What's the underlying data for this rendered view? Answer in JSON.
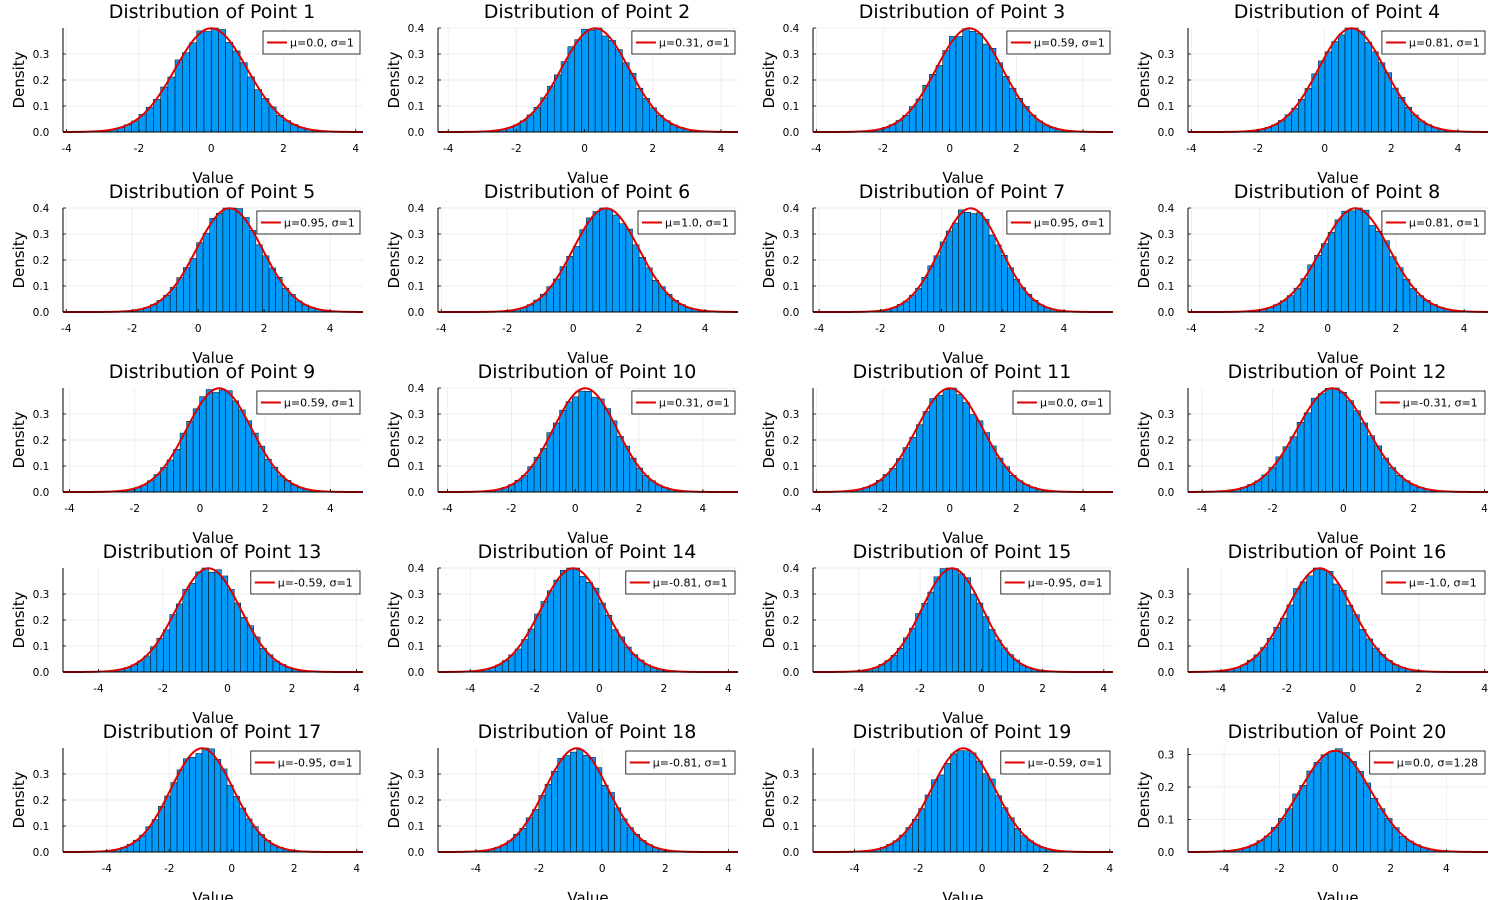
{
  "colors": {
    "bar": "#009AFA",
    "fit": "#E00000"
  },
  "chart_data": [
    {
      "type": "histogram",
      "title": "Distribution of Point 1",
      "xlabel": "Value",
      "ylabel": "Density",
      "xlim": [
        -4.1,
        4.2
      ],
      "xticks": [
        -4,
        -2,
        0,
        2,
        4
      ],
      "yticks": [
        "0.0",
        "0.1",
        "0.2",
        "0.3"
      ],
      "ylim": [
        0,
        0.4
      ],
      "mu": 0.0,
      "sigma": 1,
      "legend": "μ=0.0, σ=1"
    },
    {
      "type": "histogram",
      "title": "Distribution of Point 2",
      "xlabel": "Value",
      "ylabel": "Density",
      "xlim": [
        -4.3,
        4.5
      ],
      "xticks": [
        -4,
        -2,
        0,
        2,
        4
      ],
      "yticks": [
        "0.0",
        "0.1",
        "0.2",
        "0.3",
        "0.4"
      ],
      "ylim": [
        0,
        0.4
      ],
      "mu": 0.31,
      "sigma": 1,
      "legend": "μ=0.31, σ=1"
    },
    {
      "type": "histogram",
      "title": "Distribution of Point 3",
      "xlabel": "Value",
      "ylabel": "Density",
      "xlim": [
        -4.1,
        4.9
      ],
      "xticks": [
        -4,
        -2,
        0,
        2,
        4
      ],
      "yticks": [
        "0.0",
        "0.1",
        "0.2",
        "0.3",
        "0.4"
      ],
      "ylim": [
        0,
        0.4
      ],
      "mu": 0.59,
      "sigma": 1,
      "legend": "μ=0.59, σ=1"
    },
    {
      "type": "histogram",
      "title": "Distribution of Point 4",
      "xlabel": "Value",
      "ylabel": "Density",
      "xlim": [
        -4.1,
        4.9
      ],
      "xticks": [
        -4,
        -2,
        0,
        2,
        4
      ],
      "yticks": [
        "0.0",
        "0.1",
        "0.2",
        "0.3"
      ],
      "ylim": [
        0,
        0.4
      ],
      "mu": 0.81,
      "sigma": 1,
      "legend": "μ=0.81, σ=1"
    },
    {
      "type": "histogram",
      "title": "Distribution of Point 5",
      "xlabel": "Value",
      "ylabel": "Density",
      "xlim": [
        -4.1,
        5.0
      ],
      "xticks": [
        -4,
        -2,
        0,
        2,
        4
      ],
      "yticks": [
        "0.0",
        "0.1",
        "0.2",
        "0.3",
        "0.4"
      ],
      "ylim": [
        0,
        0.4
      ],
      "mu": 0.95,
      "sigma": 1,
      "legend": "μ=0.95, σ=1"
    },
    {
      "type": "histogram",
      "title": "Distribution of Point 6",
      "xlabel": "Value",
      "ylabel": "Density",
      "xlim": [
        -4.1,
        5.0
      ],
      "xticks": [
        -4,
        -2,
        0,
        2,
        4
      ],
      "yticks": [
        "0.0",
        "0.1",
        "0.2",
        "0.3",
        "0.4"
      ],
      "ylim": [
        0,
        0.4
      ],
      "mu": 1.0,
      "sigma": 1,
      "legend": "μ=1.0, σ=1"
    },
    {
      "type": "histogram",
      "title": "Distribution of Point 7",
      "xlabel": "Value",
      "ylabel": "Density",
      "xlim": [
        -4.2,
        5.6
      ],
      "xticks": [
        -4,
        -2,
        0,
        2,
        4
      ],
      "yticks": [
        "0.0",
        "0.1",
        "0.2",
        "0.3",
        "0.4"
      ],
      "ylim": [
        0,
        0.4
      ],
      "mu": 0.95,
      "sigma": 1,
      "legend": "μ=0.95, σ=1"
    },
    {
      "type": "histogram",
      "title": "Distribution of Point 8",
      "xlabel": "Value",
      "ylabel": "Density",
      "xlim": [
        -4.1,
        4.7
      ],
      "xticks": [
        -4,
        -2,
        0,
        2,
        4
      ],
      "yticks": [
        "0.0",
        "0.1",
        "0.2",
        "0.3",
        "0.4"
      ],
      "ylim": [
        0,
        0.4
      ],
      "mu": 0.81,
      "sigma": 1,
      "legend": "μ=0.81, σ=1"
    },
    {
      "type": "histogram",
      "title": "Distribution of Point 9",
      "xlabel": "Value",
      "ylabel": "Density",
      "xlim": [
        -4.2,
        5.0
      ],
      "xticks": [
        -4,
        -2,
        0,
        2,
        4
      ],
      "yticks": [
        "0.0",
        "0.1",
        "0.2",
        "0.3"
      ],
      "ylim": [
        0,
        0.4
      ],
      "mu": 0.59,
      "sigma": 1,
      "legend": "μ=0.59, σ=1"
    },
    {
      "type": "histogram",
      "title": "Distribution of Point 10",
      "xlabel": "Value",
      "ylabel": "Density",
      "xlim": [
        -4.3,
        5.1
      ],
      "xticks": [
        -4,
        -2,
        0,
        2,
        4
      ],
      "yticks": [
        "0.0",
        "0.1",
        "0.2",
        "0.3",
        "0.4"
      ],
      "ylim": [
        0,
        0.4
      ],
      "mu": 0.31,
      "sigma": 1,
      "legend": "μ=0.31, σ=1"
    },
    {
      "type": "histogram",
      "title": "Distribution of Point 11",
      "xlabel": "Value",
      "ylabel": "Density",
      "xlim": [
        -4.1,
        4.9
      ],
      "xticks": [
        -4,
        -2,
        0,
        2,
        4
      ],
      "yticks": [
        "0.0",
        "0.1",
        "0.2",
        "0.3"
      ],
      "ylim": [
        0,
        0.4
      ],
      "mu": 0.0,
      "sigma": 1,
      "legend": "μ=0.0, σ=1"
    },
    {
      "type": "histogram",
      "title": "Distribution of Point 12",
      "xlabel": "Value",
      "ylabel": "Density",
      "xlim": [
        -4.4,
        4.1
      ],
      "xticks": [
        -4,
        -2,
        0,
        2,
        4
      ],
      "yticks": [
        "0.0",
        "0.1",
        "0.2",
        "0.3"
      ],
      "ylim": [
        0,
        0.4
      ],
      "mu": -0.31,
      "sigma": 1,
      "legend": "μ=-0.31, σ=1"
    },
    {
      "type": "histogram",
      "title": "Distribution of Point 13",
      "xlabel": "Value",
      "ylabel": "Density",
      "xlim": [
        -5.1,
        4.2
      ],
      "xticks": [
        -4,
        -2,
        0,
        2,
        4
      ],
      "yticks": [
        "0.0",
        "0.1",
        "0.2",
        "0.3"
      ],
      "ylim": [
        0,
        0.4
      ],
      "mu": -0.59,
      "sigma": 1,
      "legend": "μ=-0.59, σ=1"
    },
    {
      "type": "histogram",
      "title": "Distribution of Point 14",
      "xlabel": "Value",
      "ylabel": "Density",
      "xlim": [
        -5.0,
        4.3
      ],
      "xticks": [
        -4,
        -2,
        0,
        2,
        4
      ],
      "yticks": [
        "0.0",
        "0.1",
        "0.2",
        "0.3",
        "0.4"
      ],
      "ylim": [
        0,
        0.4
      ],
      "mu": -0.81,
      "sigma": 1,
      "legend": "μ=-0.81, σ=1"
    },
    {
      "type": "histogram",
      "title": "Distribution of Point 15",
      "xlabel": "Value",
      "ylabel": "Density",
      "xlim": [
        -5.5,
        4.3
      ],
      "xticks": [
        -4,
        -2,
        0,
        2,
        4
      ],
      "yticks": [
        "0.0",
        "0.1",
        "0.2",
        "0.3",
        "0.4"
      ],
      "ylim": [
        0,
        0.4
      ],
      "mu": -0.95,
      "sigma": 1,
      "legend": "μ=-0.95, σ=1"
    },
    {
      "type": "histogram",
      "title": "Distribution of Point 16",
      "xlabel": "Value",
      "ylabel": "Density",
      "xlim": [
        -5.0,
        4.1
      ],
      "xticks": [
        -4,
        -2,
        0,
        2,
        4
      ],
      "yticks": [
        "0.0",
        "0.1",
        "0.2",
        "0.3"
      ],
      "ylim": [
        0,
        0.4
      ],
      "mu": -1.0,
      "sigma": 1,
      "legend": "μ=-1.0, σ=1"
    },
    {
      "type": "histogram",
      "title": "Distribution of Point 17",
      "xlabel": "Value",
      "ylabel": "Density",
      "xlim": [
        -5.4,
        4.2
      ],
      "xticks": [
        -4,
        -2,
        0,
        2,
        4
      ],
      "yticks": [
        "0.0",
        "0.1",
        "0.2",
        "0.3"
      ],
      "ylim": [
        0,
        0.4
      ],
      "mu": -0.95,
      "sigma": 1,
      "legend": "μ=-0.95, σ=1"
    },
    {
      "type": "histogram",
      "title": "Distribution of Point 18",
      "xlabel": "Value",
      "ylabel": "Density",
      "xlim": [
        -5.2,
        4.3
      ],
      "xticks": [
        -4,
        -2,
        0,
        2,
        4
      ],
      "yticks": [
        "0.0",
        "0.1",
        "0.2",
        "0.3"
      ],
      "ylim": [
        0,
        0.4
      ],
      "mu": -0.81,
      "sigma": 1,
      "legend": "μ=-0.81, σ=1"
    },
    {
      "type": "histogram",
      "title": "Distribution of Point 19",
      "xlabel": "Value",
      "ylabel": "Density",
      "xlim": [
        -5.3,
        4.1
      ],
      "xticks": [
        -4,
        -2,
        0,
        2,
        4
      ],
      "yticks": [
        "0.0",
        "0.1",
        "0.2",
        "0.3"
      ],
      "ylim": [
        0,
        0.4
      ],
      "mu": -0.59,
      "sigma": 1,
      "legend": "μ=-0.59, σ=1"
    },
    {
      "type": "histogram",
      "title": "Distribution of Point 20",
      "xlabel": "Value",
      "ylabel": "Density",
      "xlim": [
        -5.3,
        5.5
      ],
      "xticks": [
        -4,
        -2,
        0,
        2,
        4
      ],
      "yticks": [
        "0.0",
        "0.1",
        "0.2",
        "0.3"
      ],
      "ylim": [
        0,
        0.32
      ],
      "mu": 0.0,
      "sigma": 1.28,
      "legend": "μ=0.0, σ=1.28"
    }
  ]
}
